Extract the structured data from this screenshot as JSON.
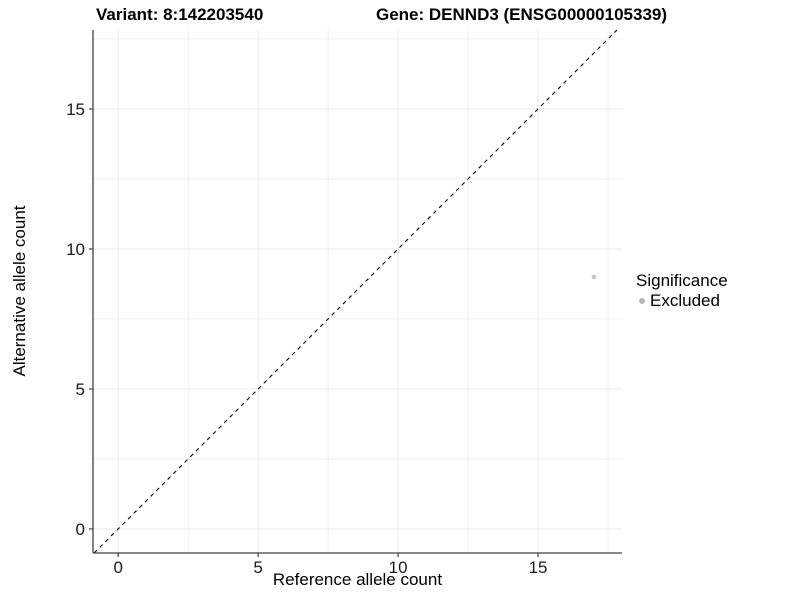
{
  "header": {
    "variant_label": "Variant: 8:142203540",
    "gene_label": "Gene: DENND3 (ENSG00000105339)"
  },
  "legend": {
    "title": "Significance",
    "items": [
      {
        "label": "Excluded",
        "color": "#b9b9b9"
      }
    ]
  },
  "chart_data": {
    "type": "scatter",
    "title": "",
    "xlabel": "Reference allele count",
    "ylabel": "Alternative allele count",
    "xlim": [
      -0.9,
      18.0
    ],
    "ylim": [
      -0.86,
      17.82
    ],
    "xticks": [
      0,
      5,
      10,
      15
    ],
    "yticks": [
      0,
      5,
      10,
      15
    ],
    "minor_ticks": [
      2.5,
      7.5,
      12.5,
      17.5
    ],
    "grid": true,
    "legend_position": "right",
    "series": [
      {
        "name": "Excluded",
        "points": [
          {
            "x": 17,
            "y": 9
          }
        ],
        "color": "#c8c8c8"
      }
    ],
    "abline": {
      "slope": 1,
      "intercept": 0,
      "linetype": "dashed",
      "color": "#000000"
    },
    "colors": {
      "background": "#ffffff",
      "grid": "#e9e9e9",
      "axis_line": "#404040",
      "tick_text": "#1a1a1a",
      "point": "#c8c8c8"
    }
  }
}
